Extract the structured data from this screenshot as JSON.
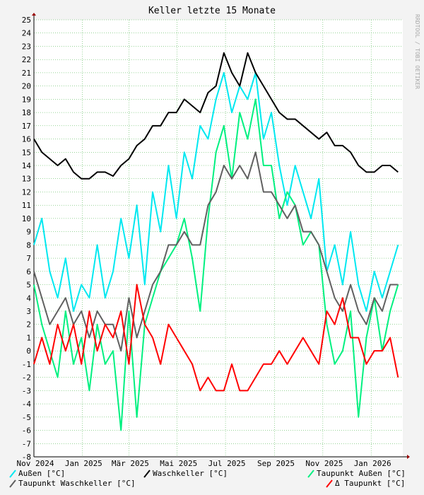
{
  "chart_data": {
    "type": "line",
    "title": "Keller letzte 15 Monate",
    "side_note": "RRDTOOL / TOBI OETIKER",
    "x": [
      0,
      10,
      20,
      30,
      40,
      50,
      60,
      70,
      80,
      90,
      100,
      110,
      120,
      130,
      140,
      150,
      160,
      170,
      180,
      190,
      200,
      210,
      220,
      230,
      240,
      250,
      260,
      270,
      280,
      290,
      300,
      310,
      320,
      330,
      340,
      350,
      360,
      370,
      380,
      390,
      400,
      410,
      420,
      430,
      440,
      450,
      460
    ],
    "xlim": [
      0,
      466
    ],
    "xticks": [
      {
        "value": 0,
        "label": "Nov 2024"
      },
      {
        "value": 61,
        "label": "Jan 2025"
      },
      {
        "value": 120,
        "label": "Mär 2025"
      },
      {
        "value": 181,
        "label": "Mai 2025"
      },
      {
        "value": 242,
        "label": "Jul 2025"
      },
      {
        "value": 304,
        "label": "Sep 2025"
      },
      {
        "value": 365,
        "label": "Nov 2025"
      },
      {
        "value": 426,
        "label": "Jan 2026"
      }
    ],
    "ylim": [
      -8,
      25
    ],
    "yticks": [
      -8,
      -7,
      -6,
      -5,
      -4,
      -3,
      -2,
      -1,
      0,
      1,
      2,
      3,
      4,
      5,
      6,
      7,
      8,
      9,
      10,
      11,
      12,
      13,
      14,
      15,
      16,
      17,
      18,
      19,
      20,
      21,
      22,
      23,
      24,
      25
    ],
    "grid": true,
    "legend": "bottom",
    "series": [
      {
        "name": "Außen [°C]",
        "color": "#00e8f0",
        "values": [
          8,
          10,
          6,
          4,
          7,
          3,
          5,
          4,
          8,
          4,
          6,
          10,
          7,
          11,
          5,
          12,
          9,
          14,
          10,
          15,
          13,
          17,
          16,
          19,
          21,
          18,
          20,
          19,
          21,
          16,
          18,
          14,
          11,
          14,
          12,
          10,
          13,
          6,
          8,
          5,
          9,
          5,
          3,
          6,
          4,
          6,
          8
        ]
      },
      {
        "name": "Waschkeller [°C]",
        "color": "#000000",
        "values": [
          16,
          15,
          14.5,
          14,
          14.5,
          13.5,
          13,
          13,
          13.5,
          13.5,
          13.2,
          14,
          14.5,
          15.5,
          16,
          17,
          17,
          18,
          18,
          19,
          18.5,
          18,
          19.5,
          20,
          22.5,
          21,
          20,
          22.5,
          21,
          20,
          19,
          18,
          17.5,
          17.5,
          17,
          16.5,
          16,
          16.5,
          15.5,
          15.5,
          15,
          14,
          13.5,
          13.5,
          14,
          14,
          13.5
        ]
      },
      {
        "name": "Taupunkt Außen [°C]",
        "color": "#00f080",
        "values": [
          5,
          2,
          0,
          -2,
          3,
          -1,
          1,
          -3,
          2,
          -1,
          0,
          -6,
          3,
          -5,
          2,
          4,
          6,
          7,
          8,
          10,
          7,
          3,
          10,
          15,
          17,
          13,
          18,
          16,
          19,
          14,
          14,
          10,
          12,
          11,
          8,
          9,
          8,
          2,
          -1,
          0,
          3,
          -5,
          1,
          4,
          0,
          3,
          5
        ]
      },
      {
        "name": "Taupunkt Waschkeller [°C]",
        "color": "#606060",
        "values": [
          6,
          4,
          2,
          3,
          4,
          2,
          3,
          1,
          3,
          2,
          2,
          0,
          4,
          1,
          3,
          5,
          6,
          8,
          8,
          9,
          8,
          8,
          11,
          12,
          14,
          13,
          14,
          13,
          15,
          12,
          12,
          11,
          10,
          11,
          9,
          9,
          8,
          6,
          4,
          3,
          5,
          3,
          2,
          4,
          3,
          5,
          5
        ]
      },
      {
        "name": "Δ Taupunkt [°C]",
        "color": "#ff0000",
        "values": [
          -1,
          1,
          -1,
          2,
          0,
          2,
          -1,
          3,
          0,
          2,
          1,
          3,
          -1,
          5,
          2,
          1,
          -1,
          2,
          1,
          0,
          -1,
          -3,
          -2,
          -3,
          -3,
          -1,
          -3,
          -3,
          -2,
          -1,
          -1,
          0,
          -1,
          0,
          1,
          0,
          -1,
          3,
          2,
          4,
          1,
          1,
          -1,
          0,
          0,
          1,
          -2
        ]
      }
    ]
  }
}
